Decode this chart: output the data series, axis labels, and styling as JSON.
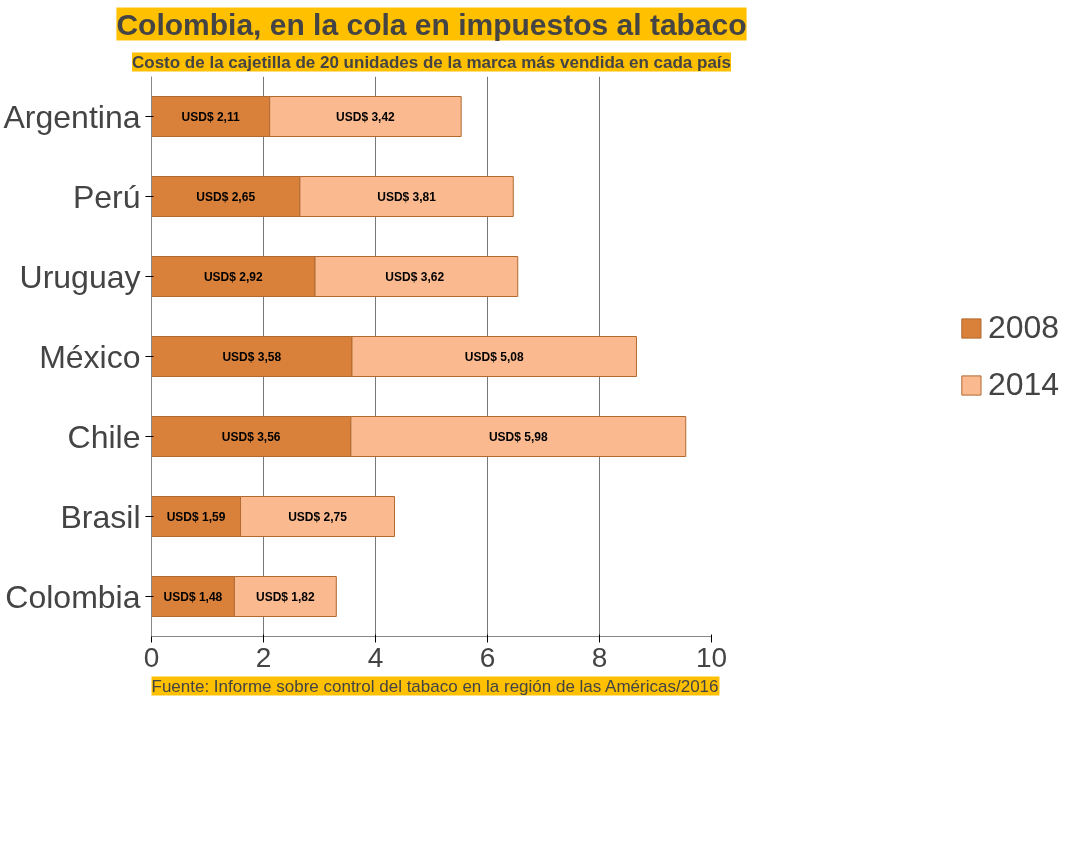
{
  "chart_data": {
    "type": "bar",
    "orientation": "horizontal",
    "stacked": true,
    "title": "Colombia, en la cola en impuestos al tabaco",
    "subtitle": "Costo de la cajetilla de 20 unidades de la marca más vendida en cada país",
    "categories": [
      "Argentina",
      "Perú",
      "Uruguay",
      "México",
      "Chile",
      "Brasil",
      "Colombia"
    ],
    "series": [
      {
        "name": "2008",
        "color": "#d9803a",
        "values": [
          2.11,
          2.65,
          2.92,
          3.58,
          3.56,
          1.59,
          1.48
        ],
        "value_labels": [
          "USD$ 2,11",
          "USD$ 2,65",
          "USD$ 2,92",
          "USD$ 3,58",
          "USD$ 3,56",
          "USD$ 1,59",
          "USD$ 1,48"
        ]
      },
      {
        "name": "2014",
        "color": "#fbb98f",
        "values": [
          3.42,
          3.81,
          3.62,
          5.08,
          5.98,
          2.75,
          1.82
        ],
        "value_labels": [
          "USD$ 3,42",
          "USD$ 3,81",
          "USD$  3,62",
          "USD$ 5,08",
          "USD$ 5,98",
          "USD$ 2,75",
          "USD$ 1,82"
        ]
      }
    ],
    "xlim": [
      0,
      10
    ],
    "xticks": [
      0,
      2,
      4,
      6,
      8,
      10
    ],
    "grid": "x",
    "legend": "right",
    "annotations": [
      "Fuente: Informe sobre control del tabaco en la región de las Américas/2016"
    ]
  }
}
